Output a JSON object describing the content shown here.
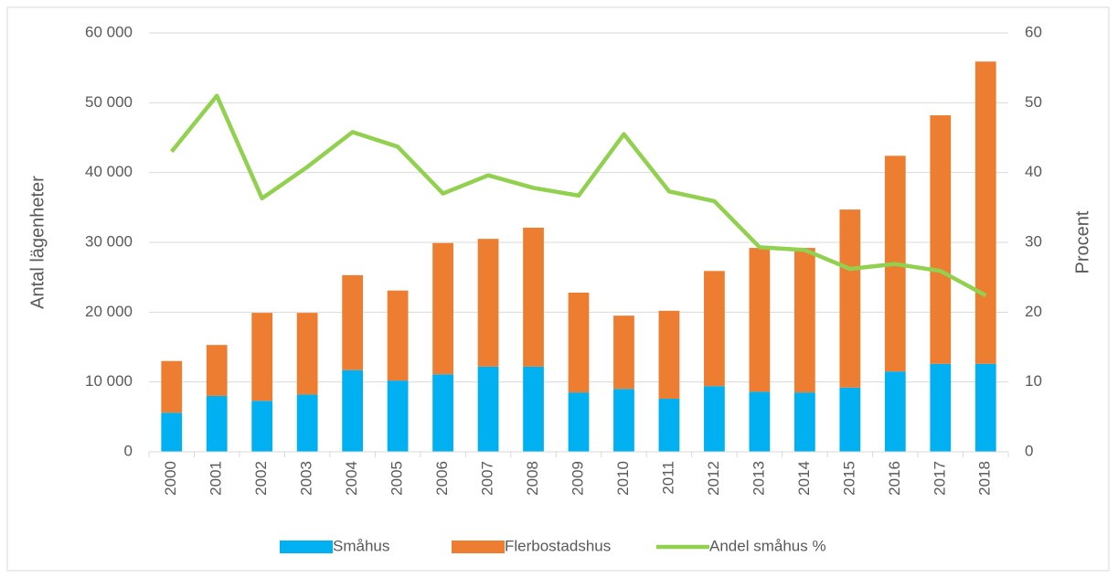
{
  "chart_data": {
    "type": "bar",
    "stacked": true,
    "categories": [
      "2000",
      "2001",
      "2002",
      "2003",
      "2004",
      "2005",
      "2006",
      "2007",
      "2008",
      "2009",
      "2010",
      "2011",
      "2012",
      "2013",
      "2014",
      "2015",
      "2016",
      "2017",
      "2018"
    ],
    "series": [
      {
        "name": "Småhus",
        "color": "#00b0f0",
        "type": "bar",
        "values": [
          5600,
          8000,
          7300,
          8200,
          11700,
          10200,
          11100,
          12200,
          12200,
          8500,
          9000,
          7600,
          9400,
          8600,
          8500,
          9200,
          11500,
          12600,
          12600
        ]
      },
      {
        "name": "Flerbostadshus",
        "color": "#ed7d31",
        "type": "bar",
        "values": [
          7400,
          7300,
          12600,
          11700,
          13600,
          12900,
          18800,
          18300,
          19900,
          14300,
          10500,
          12600,
          16500,
          20600,
          20700,
          25500,
          30900,
          35600,
          43300
        ]
      },
      {
        "name": "Andel småhus %",
        "color": "#92d050",
        "type": "line",
        "axis": "y2",
        "values": [
          43,
          51,
          36.3,
          40.8,
          45.8,
          43.7,
          37,
          39.6,
          37.8,
          36.7,
          45.5,
          37.3,
          35.9,
          29.3,
          28.9,
          26.2,
          26.9,
          25.9,
          22.4
        ]
      }
    ],
    "ylabel": "Antal lägenheter",
    "y2label": "Procent",
    "ylim": [
      0,
      60000
    ],
    "yticks": [
      {
        "value": 0,
        "label": "0"
      },
      {
        "value": 10000,
        "label": "10 000"
      },
      {
        "value": 20000,
        "label": "20 000"
      },
      {
        "value": 30000,
        "label": "30 000"
      },
      {
        "value": 40000,
        "label": "40 000"
      },
      {
        "value": 50000,
        "label": "50 000"
      },
      {
        "value": 60000,
        "label": "60 000"
      }
    ],
    "y2lim": [
      0,
      60
    ],
    "y2ticks": [
      0,
      10,
      20,
      30,
      40,
      50,
      60
    ],
    "grid": true,
    "legend": "bottom"
  }
}
